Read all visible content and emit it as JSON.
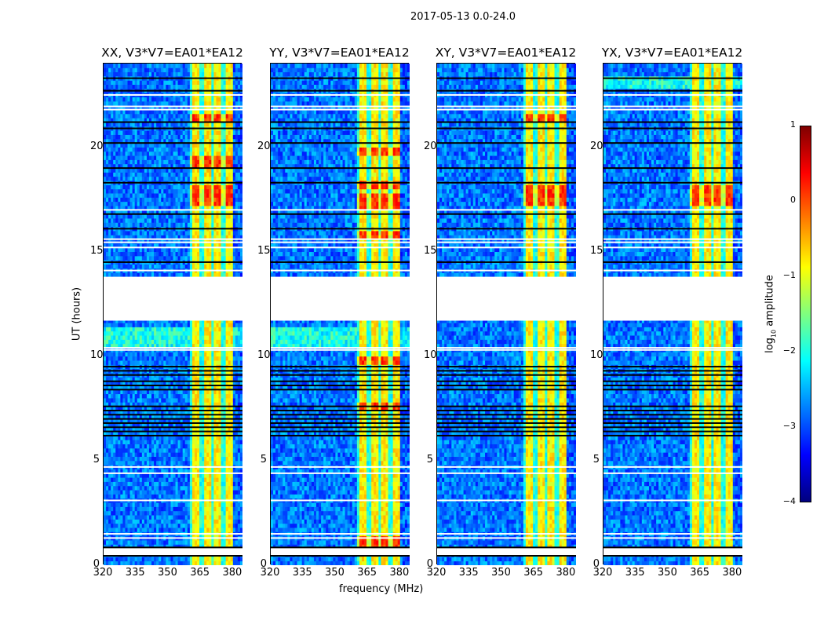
{
  "suptitle": "2017-05-13 0.0-24.0",
  "chart_data": {
    "type": "heatmap",
    "title": "2017-05-13 0.0-24.0",
    "xlabel": "frequency (MHz)",
    "ylabel": "UT (hours)",
    "xlim": [
      320,
      384.4
    ],
    "ylim": [
      0,
      24
    ],
    "xticks": [
      "320",
      "335",
      "350",
      "365",
      "380"
    ],
    "xtick_values": [
      320,
      335,
      350,
      365,
      380
    ],
    "yticks": [
      "0",
      "5",
      "10",
      "15",
      "20"
    ],
    "ytick_values": [
      0,
      5,
      10,
      15,
      20
    ],
    "panels": [
      {
        "title": "XX, V3*V7=EA01*EA12",
        "cyan_rows": [
          [
            10.4,
            11.3
          ]
        ],
        "red_rows": [
          21.4,
          19.3,
          18.0,
          17.5
        ]
      },
      {
        "title": "YY, V3*V7=EA01*EA12",
        "cyan_rows": [
          [
            10.4,
            11.3
          ]
        ],
        "red_rows": [
          19.8,
          18.2,
          17.6,
          17.2,
          15.8,
          9.8,
          7.6,
          1.1
        ]
      },
      {
        "title": "XY, V3*V7=EA01*EA12",
        "cyan_rows": [],
        "red_rows": [
          21.4,
          18.0,
          17.5
        ]
      },
      {
        "title": "YX, V3*V7=EA01*EA12",
        "cyan_rows": [
          [
            22.8,
            23.5
          ]
        ],
        "red_rows": [
          18.0,
          17.5
        ]
      }
    ],
    "rfi_band_mhz": [
      360.5,
      380.5
    ],
    "rfi_subband_edges_mhz": [
      360.5,
      365.5,
      370.5,
      375.5,
      380.5
    ],
    "background_level": -2.8,
    "rfi_level": -0.8,
    "flagged_hours": [
      [
        11.7,
        13.8
      ],
      [
        0.45,
        0.85
      ]
    ],
    "flagged_lines_hours": [
      22.5,
      21.95,
      21.8,
      17.0,
      15.6,
      15.45,
      15.2,
      14.1,
      10.3,
      10.4,
      4.4,
      4.7,
      1.5,
      1.3,
      3.1
    ],
    "black_lines_hours": [
      23.3,
      22.7,
      21.2,
      20.9,
      20.2,
      19.0,
      18.3,
      16.8,
      16.1,
      14.5,
      9.5,
      9.3,
      9.1,
      8.8,
      8.6,
      8.4,
      7.6,
      7.4,
      7.2,
      7.0,
      6.8,
      6.6,
      6.4,
      6.2,
      0.45,
      0.85
    ],
    "colorbar": {
      "label": "log",
      "label_sub": "10",
      "label_rest": " amplitude",
      "range": [
        -4,
        1
      ],
      "ticks": [
        "1",
        "0",
        "−1",
        "−2",
        "−3",
        "−4"
      ],
      "tick_values": [
        1,
        0,
        -1,
        -2,
        -3,
        -4
      ],
      "colormap": "jet"
    }
  }
}
